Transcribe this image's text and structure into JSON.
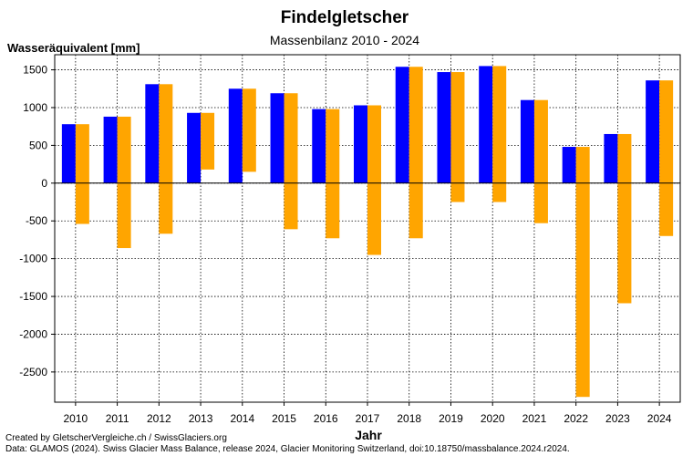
{
  "chart_data": {
    "type": "bar",
    "title": "Findelgletscher",
    "subtitle": "Massenbilanz 2010 - 2024",
    "ylabel": "Wasseräquivalent [mm]",
    "xlabel": "Jahr",
    "categories": [
      "2010",
      "2011",
      "2012",
      "2013",
      "2014",
      "2015",
      "2016",
      "2017",
      "2018",
      "2019",
      "2020",
      "2021",
      "2022",
      "2023",
      "2024"
    ],
    "series": [
      {
        "color": "#0000ff",
        "values": [
          780,
          880,
          1310,
          930,
          1250,
          1190,
          980,
          1030,
          1540,
          1470,
          1550,
          1100,
          480,
          650,
          1360
        ]
      },
      {
        "color": "#ffa500",
        "values": [
          780,
          880,
          1310,
          930,
          1250,
          1190,
          980,
          1030,
          1540,
          1470,
          1550,
          1100,
          480,
          650,
          1360
        ],
        "bottoms": [
          -540,
          -860,
          -670,
          180,
          150,
          -610,
          -730,
          -950,
          -730,
          -250,
          -250,
          -530,
          -2830,
          -1590,
          -700
        ]
      }
    ],
    "ylim": [
      -2900,
      1700
    ],
    "yticks": [
      1500,
      1000,
      500,
      0,
      -500,
      -1000,
      -1500,
      -2000,
      -2500
    ],
    "grid": true,
    "legend": "none"
  },
  "footer": {
    "line1": "Created by GletscherVergleiche.ch / SwissGlaciers.org",
    "line2": "Data: GLAMOS (2024). Swiss Glacier Mass Balance, release 2024, Glacier Monitoring Switzerland, doi:10.18750/massbalance.2024.r2024."
  }
}
